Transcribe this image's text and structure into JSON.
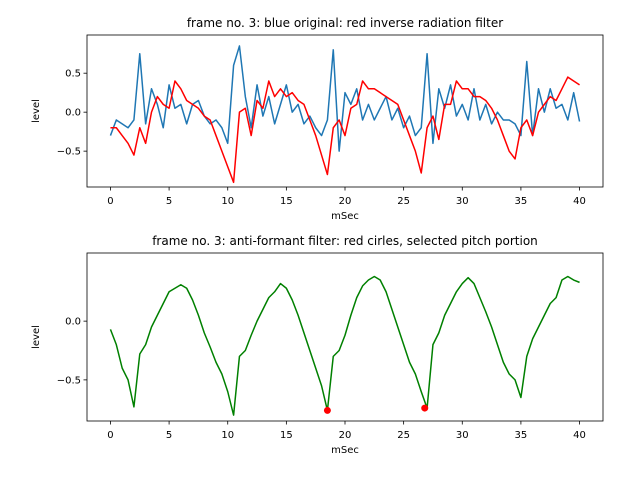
{
  "chart_data": [
    {
      "type": "line",
      "title": "frame no. 3: blue original: red inverse radiation filter",
      "xlabel": "mSec",
      "ylabel": "level",
      "x": [
        0,
        0.5,
        1,
        1.5,
        2,
        2.5,
        3,
        3.5,
        4,
        4.5,
        5,
        5.5,
        6,
        6.5,
        7,
        7.5,
        8,
        8.5,
        9,
        9.5,
        10,
        10.5,
        11,
        11.5,
        12,
        12.5,
        13,
        13.5,
        14,
        14.5,
        15,
        15.5,
        16,
        16.5,
        17,
        17.5,
        18,
        18.5,
        19,
        19.5,
        20,
        20.5,
        21,
        21.5,
        22,
        22.5,
        23,
        23.5,
        24,
        24.5,
        25,
        25.5,
        26,
        26.5,
        27,
        27.5,
        28,
        28.5,
        29,
        29.5,
        30,
        30.5,
        31,
        31.5,
        32,
        32.5,
        33,
        33.5,
        34,
        34.5,
        35,
        35.5,
        36,
        36.5,
        37,
        37.5,
        38,
        38.5,
        39,
        39.5,
        40
      ],
      "xlim": [
        -2,
        42
      ],
      "xticks": [
        0,
        5,
        10,
        15,
        20,
        25,
        30,
        35,
        40
      ],
      "ylim": [
        -0.96,
        0.99
      ],
      "yticks": [
        {
          "value": -0.5,
          "label": "−0.5"
        },
        {
          "value": 0,
          "label": "0.0"
        },
        0.5
      ],
      "series": [
        {
          "color": "#1f77b4",
          "values": [
            -0.3,
            -0.1,
            -0.15,
            -0.2,
            -0.1,
            0.75,
            -0.15,
            0.3,
            0.1,
            -0.2,
            0.35,
            0.05,
            0.1,
            -0.15,
            0.1,
            0.15,
            -0.05,
            -0.15,
            -0.1,
            -0.2,
            -0.4,
            0.6,
            0.85,
            0.2,
            -0.2,
            0.35,
            -0.05,
            0.2,
            -0.15,
            0.1,
            0.35,
            0.0,
            0.1,
            -0.15,
            -0.05,
            -0.2,
            -0.3,
            -0.1,
            0.8,
            -0.5,
            0.25,
            0.1,
            0.3,
            -0.1,
            0.1,
            -0.1,
            0.05,
            0.2,
            -0.1,
            0.05,
            -0.2,
            -0.05,
            -0.3,
            -0.2,
            0.75,
            -0.4,
            0.3,
            0.05,
            0.35,
            -0.05,
            0.1,
            -0.1,
            0.3,
            -0.1,
            0.1,
            -0.15,
            0.0,
            -0.1,
            -0.1,
            -0.15,
            -0.3,
            0.65,
            -0.3,
            0.3,
            0.0,
            0.3,
            0.05,
            0.1,
            -0.1,
            0.25,
            -0.12
          ]
        },
        {
          "color": "#ff0000",
          "values": [
            -0.2,
            -0.2,
            -0.3,
            -0.4,
            -0.55,
            -0.2,
            -0.4,
            0.0,
            0.2,
            0.1,
            0.05,
            0.4,
            0.3,
            0.15,
            0.1,
            0.05,
            -0.05,
            -0.1,
            -0.3,
            -0.5,
            -0.7,
            -0.9,
            0.0,
            0.05,
            -0.3,
            0.15,
            0.05,
            0.4,
            0.2,
            0.3,
            0.2,
            0.25,
            0.15,
            0.1,
            -0.1,
            -0.3,
            -0.55,
            -0.8,
            -0.2,
            -0.1,
            -0.3,
            0.05,
            0.1,
            0.4,
            0.3,
            0.3,
            0.25,
            0.2,
            0.15,
            0.1,
            -0.1,
            -0.3,
            -0.5,
            -0.78,
            -0.2,
            -0.05,
            -0.35,
            0.1,
            0.1,
            0.4,
            0.3,
            0.3,
            0.2,
            0.2,
            0.15,
            0.05,
            -0.1,
            -0.3,
            -0.5,
            -0.6,
            -0.2,
            -0.1,
            -0.3,
            0.0,
            0.1,
            0.2,
            0.15,
            0.3,
            0.45,
            0.4,
            0.35
          ]
        }
      ]
    },
    {
      "type": "line",
      "title": "frame no. 3: anti-formant filter: red cirles, selected pitch portion",
      "xlabel": "mSec",
      "ylabel": "level",
      "x": [
        0,
        0.5,
        1,
        1.5,
        2,
        2.5,
        3,
        3.5,
        4,
        4.5,
        5,
        5.5,
        6,
        6.5,
        7,
        7.5,
        8,
        8.5,
        9,
        9.5,
        10,
        10.5,
        11,
        11.5,
        12,
        12.5,
        13,
        13.5,
        14,
        14.5,
        15,
        15.5,
        16,
        16.5,
        17,
        17.5,
        18,
        18.5,
        19,
        19.5,
        20,
        20.5,
        21,
        21.5,
        22,
        22.5,
        23,
        23.5,
        24,
        24.5,
        25,
        25.5,
        26,
        26.5,
        27,
        27.5,
        28,
        28.5,
        29,
        29.5,
        30,
        30.5,
        31,
        31.5,
        32,
        32.5,
        33,
        33.5,
        34,
        34.5,
        35,
        35.5,
        36,
        36.5,
        37,
        37.5,
        38,
        38.5,
        39,
        39.5,
        40
      ],
      "xlim": [
        -2,
        42
      ],
      "xticks": [
        0,
        5,
        10,
        15,
        20,
        25,
        30,
        35,
        40
      ],
      "ylim": [
        -0.85,
        0.58
      ],
      "yticks": [
        {
          "value": -0.5,
          "label": "−0.5"
        },
        {
          "value": 0,
          "label": "0.0"
        }
      ],
      "series": [
        {
          "color": "#008000",
          "values": [
            -0.07,
            -0.2,
            -0.4,
            -0.5,
            -0.73,
            -0.28,
            -0.2,
            -0.05,
            0.05,
            0.15,
            0.25,
            0.28,
            0.31,
            0.28,
            0.18,
            0.05,
            -0.1,
            -0.22,
            -0.35,
            -0.45,
            -0.6,
            -0.8,
            -0.3,
            -0.25,
            -0.12,
            0.0,
            0.1,
            0.2,
            0.25,
            0.32,
            0.28,
            0.18,
            0.05,
            -0.1,
            -0.25,
            -0.4,
            -0.55,
            -0.76,
            -0.3,
            -0.25,
            -0.12,
            0.05,
            0.2,
            0.3,
            0.35,
            0.38,
            0.35,
            0.25,
            0.1,
            -0.05,
            -0.2,
            -0.35,
            -0.45,
            -0.6,
            -0.74,
            -0.2,
            -0.1,
            0.05,
            0.15,
            0.25,
            0.32,
            0.37,
            0.32,
            0.2,
            0.08,
            -0.05,
            -0.2,
            -0.35,
            -0.45,
            -0.5,
            -0.65,
            -0.3,
            -0.15,
            -0.05,
            0.05,
            0.15,
            0.2,
            0.35,
            0.38,
            0.35,
            0.33
          ]
        },
        {
          "color": "#ff0000",
          "marker": "circle",
          "x": [
            18.5,
            26.8
          ],
          "values": [
            -0.76,
            -0.74
          ]
        }
      ]
    }
  ]
}
